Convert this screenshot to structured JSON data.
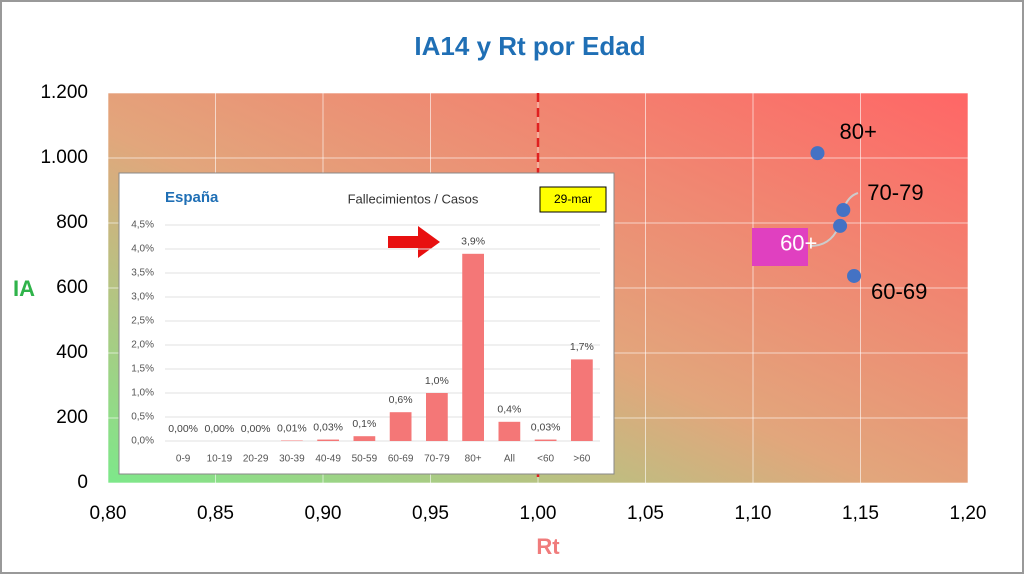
{
  "chart_data": [
    {
      "type": "scatter",
      "title": "IA14 y Rt por Edad",
      "x_label": "Rt",
      "y_label": "IA",
      "series": [
        {
          "name": "Edad",
          "color": "#4472c4",
          "x": [
            1.13,
            1.142,
            1.1405,
            1.147
          ],
          "values": [
            1015,
            840,
            791,
            637
          ],
          "point_labels": [
            "80+",
            "70-79",
            "60+",
            "60-69"
          ]
        }
      ],
      "reference_x": 1.0,
      "xlim": [
        0.8,
        1.2
      ],
      "xticks": [
        {
          "value": 0.8,
          "label": "0,80"
        },
        {
          "value": 0.85,
          "label": "0,85"
        },
        {
          "value": 0.9,
          "label": "0,90"
        },
        {
          "value": 0.95,
          "label": "0,95"
        },
        {
          "value": 1.0,
          "label": "1,00"
        },
        {
          "value": 1.05,
          "label": "1,05"
        },
        {
          "value": 1.1,
          "label": "1,10"
        },
        {
          "value": 1.15,
          "label": "1,15"
        },
        {
          "value": 1.2,
          "label": "1,20"
        }
      ],
      "ylim": [
        0,
        1200
      ],
      "yticks": [
        0,
        200,
        400,
        600,
        800,
        {
          "value": 1000,
          "label": "1.000"
        },
        {
          "value": 1200,
          "label": "1.200"
        }
      ],
      "grid": true
    },
    {
      "type": "bar",
      "title": "España",
      "subtitle": "Fallecimientos / Casos",
      "date": "29-mar",
      "categories": [
        "0-9",
        "10-19",
        "20-29",
        "30-39",
        "40-49",
        "50-59",
        "60-69",
        "70-79",
        "80+",
        "All",
        "<60",
        ">60"
      ],
      "values": [
        0,
        0,
        0,
        0.01,
        0.03,
        0.1,
        0.6,
        1.0,
        3.9,
        0.4,
        0.03,
        1.7
      ],
      "value_labels": [
        "0,00%",
        "0,00%",
        "0,00%",
        "0,01%",
        "0,03%",
        "0,1%",
        "0,6%",
        "1,0%",
        "3,9%",
        "0,4%",
        "0,03%",
        "1,7%"
      ],
      "color": "#f47777",
      "ylim": [
        0,
        4.5
      ],
      "yticks": [
        {
          "value": 0,
          "label": "0,0%"
        },
        {
          "value": 0.5,
          "label": "0,5%"
        },
        {
          "value": 1.0,
          "label": "1,0%"
        },
        {
          "value": 1.5,
          "label": "1,5%"
        },
        {
          "value": 2.0,
          "label": "2,0%"
        },
        {
          "value": 2.5,
          "label": "2,5%"
        },
        {
          "value": 3.0,
          "label": "3,0%"
        },
        {
          "value": 3.5,
          "label": "3,5%"
        },
        {
          "value": 4.0,
          "label": "4,0%"
        },
        {
          "value": 4.5,
          "label": "4,5%"
        }
      ],
      "grid": true
    }
  ]
}
